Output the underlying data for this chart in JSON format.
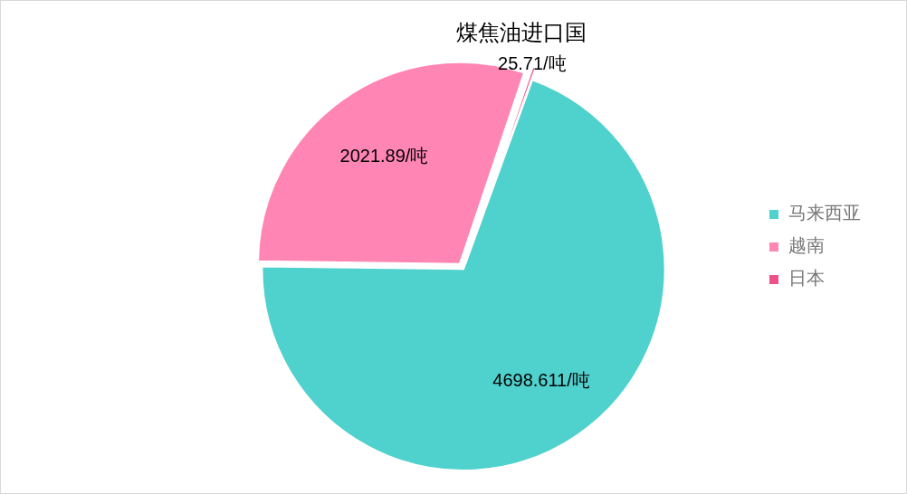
{
  "chart_data": {
    "type": "pie",
    "title": "煤焦油进口国",
    "categories": [
      "马来西亚",
      "越南",
      "日本"
    ],
    "values": [
      4698.611,
      2021.89,
      25.71
    ],
    "colors": [
      "#4fd1cd",
      "#ff85b4",
      "#f0508a"
    ],
    "value_labels": [
      "4698.611/吨",
      "2021.89/吨",
      "25.71/吨"
    ],
    "legend": "right"
  }
}
